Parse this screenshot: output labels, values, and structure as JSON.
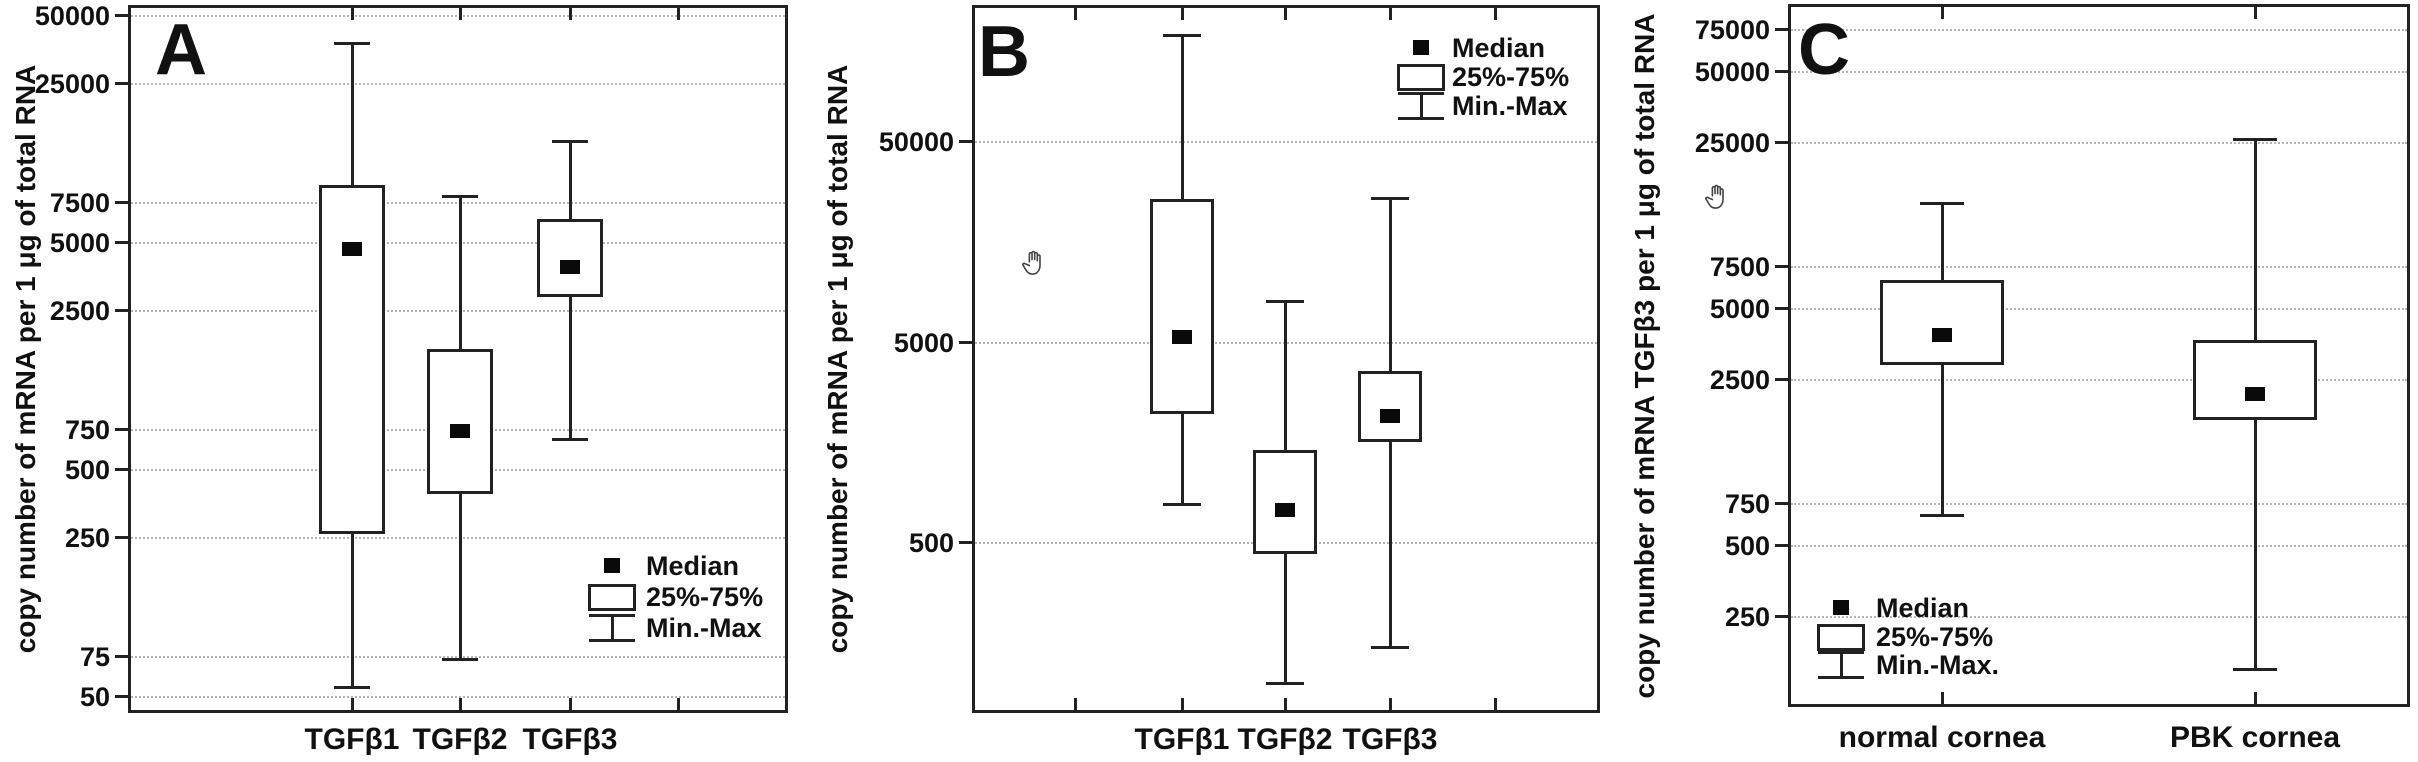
{
  "figure": {
    "description": "Three-panel box plot figure of TGF-beta mRNA copy numbers",
    "panel_labels": [
      "A",
      "B",
      "C"
    ]
  },
  "chart_data": [
    {
      "panel_label": "A",
      "type": "boxplot",
      "yscale": "log",
      "ylabel": "copy number of mRNA per 1 μg of total RNA",
      "yticks": [
        50000,
        25000,
        7500,
        5000,
        2500,
        750,
        500,
        250,
        75,
        50
      ],
      "categories": [
        "TGFβ1",
        "TGFβ2",
        "TGFβ3"
      ],
      "series": [
        {
          "category": "TGFβ1",
          "min": 55,
          "q1": 260,
          "median": 4700,
          "q3": 9000,
          "max": 38000
        },
        {
          "category": "TGFβ2",
          "min": 73,
          "q1": 390,
          "median": 740,
          "q3": 1700,
          "max": 8000
        },
        {
          "category": "TGFβ3",
          "min": 680,
          "q1": 2900,
          "median": 3900,
          "q3": 6400,
          "max": 14000
        }
      ],
      "legend": {
        "position": "bottom-right",
        "items": [
          {
            "marker": "square",
            "label": "Median"
          },
          {
            "marker": "box",
            "label": "25%-75%"
          },
          {
            "marker": "whisker",
            "label": "Min.-Max"
          }
        ]
      }
    },
    {
      "panel_label": "B",
      "type": "boxplot",
      "yscale": "log",
      "ylabel": "copy number of mRNA per 1 μg of total RNA",
      "yticks": [
        50000,
        5000,
        500
      ],
      "categories": [
        "TGFβ1",
        "TGFβ2",
        "TGFβ3"
      ],
      "series": [
        {
          "category": "TGFβ1",
          "min": 780,
          "q1": 2200,
          "median": 5300,
          "q3": 26000,
          "max": 170000
        },
        {
          "category": "TGFβ2",
          "min": 100,
          "q1": 440,
          "median": 730,
          "q3": 1450,
          "max": 8000
        },
        {
          "category": "TGFβ3",
          "min": 150,
          "q1": 1600,
          "median": 2150,
          "q3": 3600,
          "max": 26000
        }
      ],
      "legend": {
        "position": "top-right",
        "items": [
          {
            "marker": "square",
            "label": "Median"
          },
          {
            "marker": "box",
            "label": "25%-75%"
          },
          {
            "marker": "whisker",
            "label": "Min.-Max"
          }
        ]
      }
    },
    {
      "panel_label": "C",
      "type": "boxplot",
      "yscale": "log",
      "ylabel": "copy number of mRNA TGFβ3 per 1 μg of total RNA",
      "yticks": [
        75000,
        50000,
        25000,
        7500,
        5000,
        2500,
        750,
        500,
        250
      ],
      "categories": [
        "normal cornea",
        "PBK cornea"
      ],
      "series": [
        {
          "category": "normal cornea",
          "min": 670,
          "q1": 2900,
          "median": 3900,
          "q3": 6600,
          "max": 14000
        },
        {
          "category": "PBK cornea",
          "min": 150,
          "q1": 1700,
          "median": 2200,
          "q3": 3700,
          "max": 26000
        }
      ],
      "legend": {
        "position": "bottom-left",
        "items": [
          {
            "marker": "square",
            "label": "Median"
          },
          {
            "marker": "box",
            "label": "25%-75%"
          },
          {
            "marker": "whisker",
            "label": "Min.-Max."
          }
        ]
      }
    }
  ]
}
